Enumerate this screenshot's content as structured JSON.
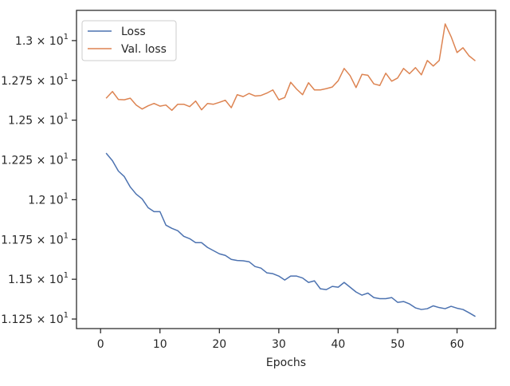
{
  "chart_data": {
    "type": "line",
    "title": "",
    "xlabel": "Epochs",
    "ylabel": "",
    "x": [
      1,
      2,
      3,
      4,
      5,
      6,
      7,
      8,
      9,
      10,
      11,
      12,
      13,
      14,
      15,
      16,
      17,
      18,
      19,
      20,
      21,
      22,
      23,
      24,
      25,
      26,
      27,
      28,
      29,
      30,
      31,
      32,
      33,
      34,
      35,
      36,
      37,
      38,
      39,
      40,
      41,
      42,
      43,
      44,
      45,
      46,
      47,
      48,
      49,
      50,
      51,
      52,
      53,
      54,
      55,
      56,
      57,
      58,
      59,
      60,
      61,
      62,
      63
    ],
    "series": [
      {
        "name": "Loss",
        "color": "#4c72b0",
        "values": [
          12.29,
          12.245,
          12.18,
          12.145,
          12.08,
          12.035,
          12.005,
          11.95,
          11.925,
          11.925,
          11.84,
          11.82,
          11.805,
          11.77,
          11.755,
          11.73,
          11.73,
          11.7,
          11.68,
          11.66,
          11.65,
          11.625,
          11.618,
          11.616,
          11.61,
          11.58,
          11.57,
          11.54,
          11.535,
          11.52,
          11.495,
          11.52,
          11.52,
          11.508,
          11.48,
          11.49,
          11.44,
          11.435,
          11.455,
          11.45,
          11.48,
          11.45,
          11.42,
          11.4,
          11.413,
          11.385,
          11.378,
          11.378,
          11.385,
          11.355,
          11.36,
          11.345,
          11.32,
          11.31,
          11.315,
          11.333,
          11.322,
          11.315,
          11.33,
          11.318,
          11.31,
          11.29,
          11.268
        ]
      },
      {
        "name": "Val. loss",
        "color": "#dd8452",
        "values": [
          12.64,
          12.68,
          12.63,
          12.628,
          12.638,
          12.595,
          12.57,
          12.59,
          12.605,
          12.588,
          12.595,
          12.562,
          12.6,
          12.6,
          12.585,
          12.62,
          12.565,
          12.605,
          12.6,
          12.612,
          12.625,
          12.578,
          12.66,
          12.648,
          12.668,
          12.652,
          12.655,
          12.67,
          12.69,
          12.628,
          12.642,
          12.738,
          12.695,
          12.66,
          12.735,
          12.69,
          12.69,
          12.698,
          12.708,
          12.748,
          12.825,
          12.78,
          12.705,
          12.788,
          12.782,
          12.728,
          12.718,
          12.795,
          12.745,
          12.765,
          12.825,
          12.792,
          12.83,
          12.785,
          12.875,
          12.84,
          12.875,
          13.105,
          13.025,
          12.925,
          12.955,
          12.905,
          12.875
        ]
      }
    ],
    "xlim": [
      -4.05,
      66.5
    ],
    "ylim": [
      11.19,
      13.19
    ],
    "xticks": [
      0,
      10,
      20,
      30,
      40,
      50,
      60
    ],
    "yticks": [
      11.25,
      11.5,
      11.75,
      12.0,
      12.25,
      12.5,
      12.75,
      13.0
    ],
    "xtick_labels": [
      "0",
      "10",
      "20",
      "30",
      "40",
      "50",
      "60"
    ],
    "ytick_labels": [
      {
        "mantissa": "1.125",
        "sep": " × ",
        "base": "10",
        "exp": "1"
      },
      {
        "mantissa": "1.15",
        "sep": " × ",
        "base": "10",
        "exp": "1"
      },
      {
        "mantissa": "1.175",
        "sep": " × ",
        "base": "10",
        "exp": "1"
      },
      {
        "mantissa": "1.2",
        "sep": " ",
        "base": "10",
        "exp": "1"
      },
      {
        "mantissa": "1.225",
        "sep": " × ",
        "base": "10",
        "exp": "1"
      },
      {
        "mantissa": "1.25",
        "sep": " × ",
        "base": "10",
        "exp": "1"
      },
      {
        "mantissa": "1.275",
        "sep": " × ",
        "base": "10",
        "exp": "1"
      },
      {
        "mantissa": "1.3",
        "sep": " × ",
        "base": "10",
        "exp": "1"
      }
    ],
    "grid": false,
    "legend_position": "upper-left",
    "style": {
      "axes_color": "#262626",
      "tick_color": "#262626",
      "text_color": "#262626"
    }
  }
}
